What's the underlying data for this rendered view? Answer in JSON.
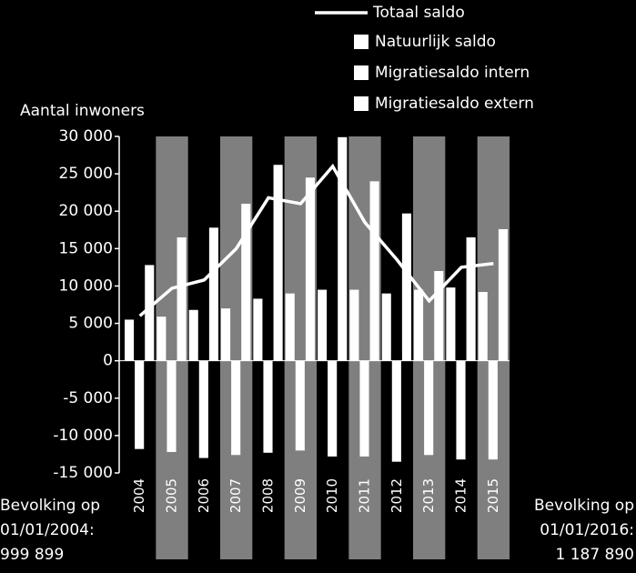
{
  "chart_data": {
    "type": "bar",
    "ylabel": "Aantal inwoners",
    "categories": [
      "2004",
      "2005",
      "2006",
      "2007",
      "2008",
      "2009",
      "2010",
      "2011",
      "2012",
      "2013",
      "2014",
      "2015"
    ],
    "series": [
      {
        "name": "Natuurlijk saldo",
        "color": "#ffffff",
        "values": [
          5500,
          5900,
          6800,
          7000,
          8300,
          9000,
          9500,
          9500,
          9000,
          9500,
          9800,
          9200
        ]
      },
      {
        "name": "Migratiesaldo intern",
        "color": "#ffffff",
        "values": [
          -11800,
          -12200,
          -13000,
          -12600,
          -12300,
          -12000,
          -12800,
          -12800,
          -13500,
          -12600,
          -13200,
          -13200
        ]
      },
      {
        "name": "Migratiesaldo extern",
        "color": "#ffffff",
        "values": [
          12800,
          16500,
          17800,
          21000,
          26200,
          24500,
          29900,
          24000,
          19700,
          12000,
          16500,
          17600
        ]
      },
      {
        "name": "Totaal saldo",
        "color": "#ffffff",
        "type": "line",
        "values": [
          6000,
          9700,
          10800,
          15000,
          21800,
          21000,
          26000,
          18500,
          13500,
          8000,
          12500,
          13000
        ]
      }
    ],
    "ylim": [
      -15000,
      30000
    ],
    "yticks": [
      {
        "value": -15000,
        "label": "-15 000"
      },
      {
        "value": -10000,
        "label": "-10 000"
      },
      {
        "value": -5000,
        "label": "-5 000"
      },
      0,
      {
        "value": 5000,
        "label": "5 000"
      },
      {
        "value": 10000,
        "label": "10 000"
      },
      {
        "value": 15000,
        "label": "15 000"
      },
      {
        "value": 20000,
        "label": "20 000"
      },
      {
        "value": 25000,
        "label": "25 000"
      },
      {
        "value": 30000,
        "label": "30 000"
      }
    ],
    "annotations": [
      "Bevolking op",
      "01/01/2004:",
      "999 899",
      "Bevolking op",
      "01/01/2016:",
      "1 187 890"
    ]
  }
}
